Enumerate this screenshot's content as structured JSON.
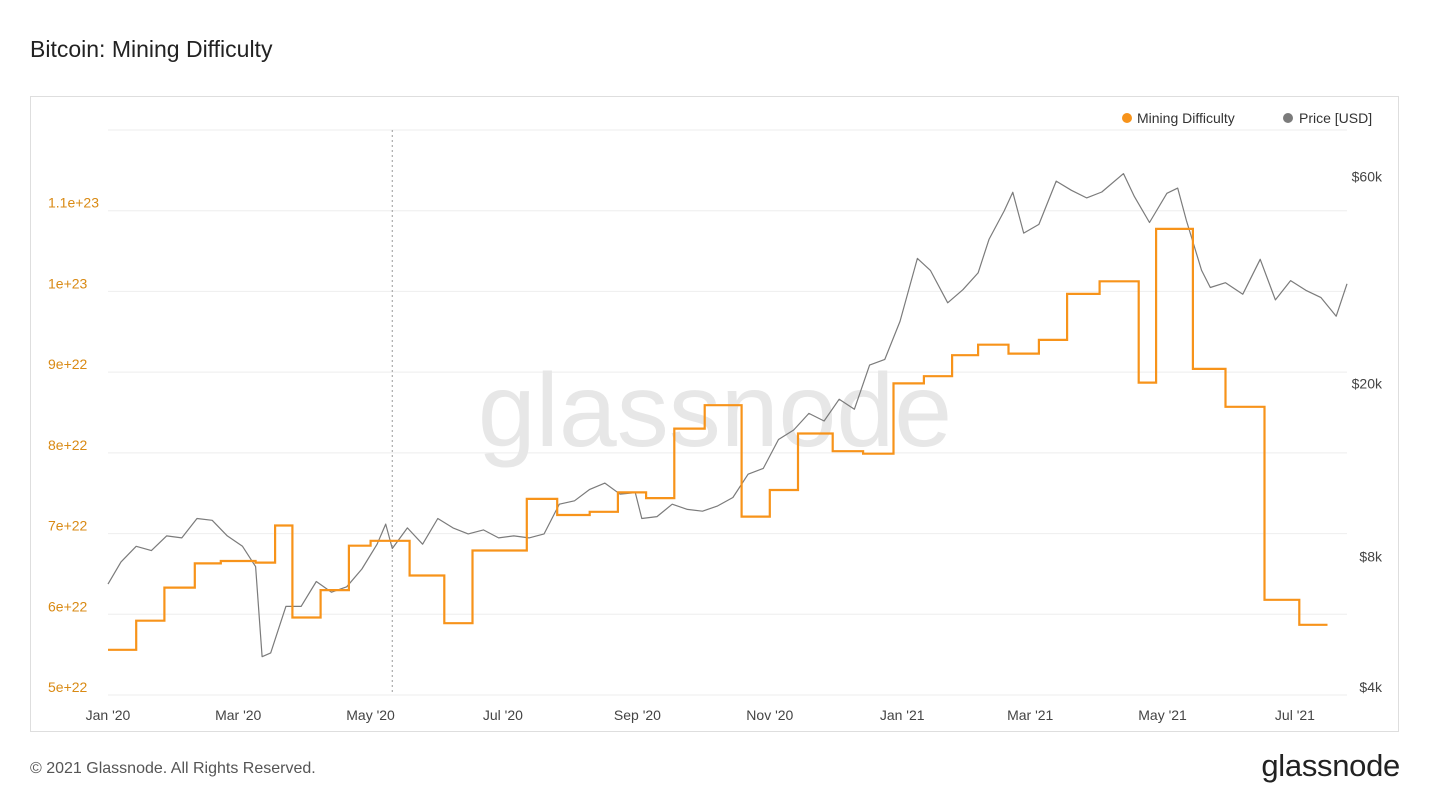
{
  "page": {
    "title": "Bitcoin: Mining Difficulty",
    "footer_copyright": "© 2021 Glassnode. All Rights Reserved.",
    "footer_logo": "glassnode",
    "watermark": "glassnode"
  },
  "colors": {
    "difficulty": "#f7931a",
    "price": "#7b7b7b",
    "left_axis_text": "#d98a14",
    "grid": "#eeeeee"
  },
  "chart_data": {
    "type": "line",
    "title": "Bitcoin: Mining Difficulty",
    "legend_position": "top-right",
    "grid": true,
    "x_range": [
      "2020-01-01",
      "2021-07-25"
    ],
    "x_ticks": [
      {
        "label": "Jan '20",
        "date": "2020-01-01"
      },
      {
        "label": "Mar '20",
        "date": "2020-03-01"
      },
      {
        "label": "May '20",
        "date": "2020-05-01"
      },
      {
        "label": "Jul '20",
        "date": "2020-07-01"
      },
      {
        "label": "Sep '20",
        "date": "2020-09-01"
      },
      {
        "label": "Nov '20",
        "date": "2020-11-01"
      },
      {
        "label": "Jan '21",
        "date": "2021-01-01"
      },
      {
        "label": "Mar '21",
        "date": "2021-03-01"
      },
      {
        "label": "May '21",
        "date": "2021-05-01"
      },
      {
        "label": "Jul '21",
        "date": "2021-07-01"
      }
    ],
    "y_left": {
      "scale": "linear",
      "range": [
        5e+22,
        1.2e+23
      ],
      "ticks": [
        {
          "label": "5e+22",
          "value": 5e+22
        },
        {
          "label": "6e+22",
          "value": 6e+22
        },
        {
          "label": "7e+22",
          "value": 7e+22
        },
        {
          "label": "8e+22",
          "value": 8e+22
        },
        {
          "label": "9e+22",
          "value": 9e+22
        },
        {
          "label": "1e+23",
          "value": 1e+23
        },
        {
          "label": "1.1e+23",
          "value": 1.1e+23
        }
      ]
    },
    "y_right": {
      "scale": "log",
      "range": [
        4000,
        80000
      ],
      "ticks": [
        {
          "label": "$4k",
          "value": 4000
        },
        {
          "label": "$8k",
          "value": 8000
        },
        {
          "label": "$20k",
          "value": 20000
        },
        {
          "label": "$60k",
          "value": 60000
        }
      ]
    },
    "vertical_marker_date": "2020-05-11",
    "series": [
      {
        "name": "Mining Difficulty",
        "axis": "left",
        "step": true,
        "points": [
          [
            "2020-01-01",
            5.56e+22
          ],
          [
            "2020-01-14",
            5.92e+22
          ],
          [
            "2020-01-27",
            6.33e+22
          ],
          [
            "2020-02-10",
            6.63e+22
          ],
          [
            "2020-02-22",
            6.66e+22
          ],
          [
            "2020-03-09",
            6.64e+22
          ],
          [
            "2020-03-18",
            7.1e+22
          ],
          [
            "2020-03-26",
            5.96e+22
          ],
          [
            "2020-04-08",
            6.3e+22
          ],
          [
            "2020-04-21",
            6.85e+22
          ],
          [
            "2020-05-01",
            6.91e+22
          ],
          [
            "2020-05-19",
            6.48e+22
          ],
          [
            "2020-06-04",
            5.89e+22
          ],
          [
            "2020-06-17",
            6.79e+22
          ],
          [
            "2020-07-12",
            7.43e+22
          ],
          [
            "2020-07-26",
            7.23e+22
          ],
          [
            "2020-08-10",
            7.27e+22
          ],
          [
            "2020-08-23",
            7.51e+22
          ],
          [
            "2020-09-05",
            7.44e+22
          ],
          [
            "2020-09-18",
            8.3e+22
          ],
          [
            "2020-10-02",
            8.59e+22
          ],
          [
            "2020-10-19",
            7.21e+22
          ],
          [
            "2020-11-01",
            7.54e+22
          ],
          [
            "2020-11-14",
            8.24e+22
          ],
          [
            "2020-11-30",
            8.02e+22
          ],
          [
            "2020-12-14",
            7.99e+22
          ],
          [
            "2020-12-28",
            8.86e+22
          ],
          [
            "2021-01-11",
            8.95e+22
          ],
          [
            "2021-01-24",
            9.21e+22
          ],
          [
            "2021-02-05",
            9.34e+22
          ],
          [
            "2021-02-19",
            9.23e+22
          ],
          [
            "2021-03-05",
            9.4e+22
          ],
          [
            "2021-03-18",
            9.97e+22
          ],
          [
            "2021-04-02",
            1.0126e+23
          ],
          [
            "2021-04-20",
            8.87e+22
          ],
          [
            "2021-04-28",
            1.0775e+23
          ],
          [
            "2021-05-15",
            9.04e+22
          ],
          [
            "2021-05-30",
            8.57e+22
          ],
          [
            "2021-06-17",
            6.18e+22
          ],
          [
            "2021-07-03",
            5.87e+22
          ],
          [
            "2021-07-16",
            5.87e+22
          ]
        ]
      },
      {
        "name": "Price [USD]",
        "axis": "right",
        "step": false,
        "points": [
          [
            "2020-01-01",
            7200
          ],
          [
            "2020-01-07",
            8100
          ],
          [
            "2020-01-14",
            8800
          ],
          [
            "2020-01-21",
            8600
          ],
          [
            "2020-01-28",
            9300
          ],
          [
            "2020-02-04",
            9200
          ],
          [
            "2020-02-11",
            10200
          ],
          [
            "2020-02-18",
            10100
          ],
          [
            "2020-02-25",
            9300
          ],
          [
            "2020-03-03",
            8800
          ],
          [
            "2020-03-09",
            7900
          ],
          [
            "2020-03-12",
            4900
          ],
          [
            "2020-03-16",
            5000
          ],
          [
            "2020-03-23",
            6400
          ],
          [
            "2020-03-30",
            6400
          ],
          [
            "2020-04-06",
            7300
          ],
          [
            "2020-04-13",
            6900
          ],
          [
            "2020-04-20",
            7100
          ],
          [
            "2020-04-27",
            7800
          ],
          [
            "2020-05-04",
            8900
          ],
          [
            "2020-05-08",
            9900
          ],
          [
            "2020-05-11",
            8700
          ],
          [
            "2020-05-18",
            9700
          ],
          [
            "2020-05-25",
            8900
          ],
          [
            "2020-06-01",
            10200
          ],
          [
            "2020-06-08",
            9700
          ],
          [
            "2020-06-15",
            9400
          ],
          [
            "2020-06-22",
            9600
          ],
          [
            "2020-06-29",
            9200
          ],
          [
            "2020-07-06",
            9300
          ],
          [
            "2020-07-13",
            9200
          ],
          [
            "2020-07-20",
            9400
          ],
          [
            "2020-07-27",
            11000
          ],
          [
            "2020-08-03",
            11200
          ],
          [
            "2020-08-10",
            11900
          ],
          [
            "2020-08-17",
            12300
          ],
          [
            "2020-08-24",
            11600
          ],
          [
            "2020-08-31",
            11700
          ],
          [
            "2020-09-03",
            10200
          ],
          [
            "2020-09-10",
            10300
          ],
          [
            "2020-09-17",
            11000
          ],
          [
            "2020-09-24",
            10700
          ],
          [
            "2020-10-01",
            10600
          ],
          [
            "2020-10-08",
            10900
          ],
          [
            "2020-10-15",
            11400
          ],
          [
            "2020-10-22",
            12900
          ],
          [
            "2020-10-29",
            13300
          ],
          [
            "2020-11-05",
            15500
          ],
          [
            "2020-11-12",
            16300
          ],
          [
            "2020-11-19",
            17800
          ],
          [
            "2020-11-26",
            17100
          ],
          [
            "2020-12-03",
            19200
          ],
          [
            "2020-12-10",
            18200
          ],
          [
            "2020-12-17",
            23000
          ],
          [
            "2020-12-24",
            23700
          ],
          [
            "2020-12-31",
            29000
          ],
          [
            "2021-01-08",
            40500
          ],
          [
            "2021-01-14",
            38000
          ],
          [
            "2021-01-22",
            32000
          ],
          [
            "2021-01-29",
            34300
          ],
          [
            "2021-02-05",
            37500
          ],
          [
            "2021-02-10",
            44800
          ],
          [
            "2021-02-17",
            52100
          ],
          [
            "2021-02-21",
            57500
          ],
          [
            "2021-02-26",
            46300
          ],
          [
            "2021-03-05",
            48500
          ],
          [
            "2021-03-13",
            61000
          ],
          [
            "2021-03-20",
            58100
          ],
          [
            "2021-03-27",
            55800
          ],
          [
            "2021-04-03",
            57600
          ],
          [
            "2021-04-13",
            63500
          ],
          [
            "2021-04-18",
            56200
          ],
          [
            "2021-04-25",
            49000
          ],
          [
            "2021-05-03",
            57200
          ],
          [
            "2021-05-08",
            58800
          ],
          [
            "2021-05-12",
            49500
          ],
          [
            "2021-05-19",
            38000
          ],
          [
            "2021-05-23",
            34700
          ],
          [
            "2021-05-30",
            35600
          ],
          [
            "2021-06-07",
            33500
          ],
          [
            "2021-06-15",
            40300
          ],
          [
            "2021-06-22",
            32500
          ],
          [
            "2021-06-29",
            36000
          ],
          [
            "2021-07-06",
            34200
          ],
          [
            "2021-07-13",
            32900
          ],
          [
            "2021-07-20",
            29800
          ],
          [
            "2021-07-25",
            35400
          ]
        ]
      }
    ]
  }
}
